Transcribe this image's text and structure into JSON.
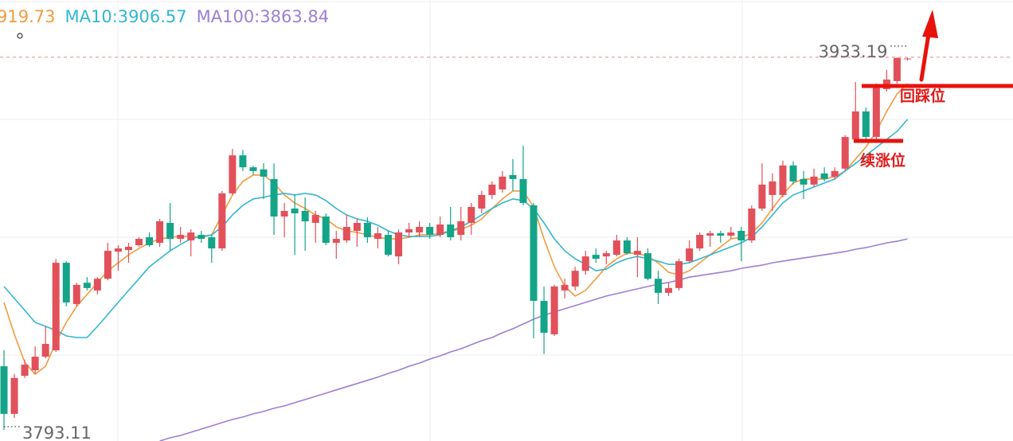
{
  "chart_data": {
    "type": "candlestick",
    "ylim": [
      3788.9,
      3954.7
    ],
    "grid": true,
    "up_color": "#e2505a",
    "down_color": "#14a487",
    "open": [
      3817.0,
      3799.1,
      3813.4,
      3815.5,
      3820.6,
      3823.0,
      3855.9,
      3840.4,
      3848.4,
      3845.5,
      3849.9,
      3860.1,
      3860.7,
      3862.5,
      3865.5,
      3863.4,
      3870.9,
      3864.9,
      3864.3,
      3866.4,
      3865.5,
      3861.3,
      3882.0,
      3896.3,
      3891.8,
      3891.0,
      3887.4,
      3873.3,
      3876.3,
      3875.4,
      3870.9,
      3873.3,
      3863.4,
      3864.3,
      3867.9,
      3870.9,
      3864.9,
      3866.4,
      3858.3,
      3867.3,
      3867.3,
      3869.4,
      3866.4,
      3870.3,
      3866.4,
      3870.9,
      3876.3,
      3881.4,
      3883.5,
      3888.9,
      3887.4,
      3877.5,
      3841.6,
      3829.0,
      3845.5,
      3847.0,
      3852.9,
      3858.9,
      3858.3,
      3858.9,
      3864.3,
      3858.9,
      3859.5,
      3849.9,
      3844.6,
      3846.4,
      3856.5,
      3861.3,
      3866.1,
      3867.0,
      3866.1,
      3867.9,
      3864.3,
      3876.3,
      3881.4,
      3881.4,
      3892.5,
      3887.4,
      3885.3,
      3889.5,
      3888.3,
      3891.3,
      3902.3,
      3912.8,
      3903.2,
      3921.2,
      3924.2,
      3932.4
    ],
    "high": [
      3823.0,
      3814.1,
      3819.5,
      3824.5,
      3832.0,
      3857.4,
      3856.5,
      3848.4,
      3850.5,
      3850.5,
      3863.4,
      3862.5,
      3863.4,
      3865.5,
      3867.3,
      3872.4,
      3878.4,
      3869.4,
      3868.5,
      3867.9,
      3866.4,
      3882.9,
      3898.7,
      3898.4,
      3892.4,
      3893.3,
      3893.3,
      3878.4,
      3881.4,
      3880.5,
      3875.4,
      3874.5,
      3867.9,
      3873.9,
      3872.4,
      3873.0,
      3869.4,
      3867.9,
      3868.5,
      3870.9,
      3871.5,
      3870.9,
      3873.3,
      3876.9,
      3876.9,
      3878.4,
      3882.9,
      3886.5,
      3890.4,
      3894.9,
      3899.9,
      3878.4,
      3847.0,
      3847.6,
      3849.9,
      3854.4,
      3860.4,
      3861.3,
      3860.4,
      3866.4,
      3865.5,
      3865.5,
      3861.3,
      3852.9,
      3848.4,
      3857.4,
      3864.3,
      3867.3,
      3867.9,
      3867.9,
      3869.4,
      3869.4,
      3877.5,
      3893.3,
      3889.5,
      3894.3,
      3894.0,
      3890.4,
      3891.3,
      3891.8,
      3891.8,
      3903.9,
      3923.9,
      3914.3,
      3923.3,
      3928.4,
      3933.19,
      3933.0
    ],
    "low": [
      3793.11,
      3797.6,
      3812.6,
      3814.1,
      3820.0,
      3822.4,
      3839.5,
      3839.5,
      3845.5,
      3844.0,
      3849.3,
      3852.9,
      3855.9,
      3861.9,
      3861.9,
      3861.9,
      3860.4,
      3863.4,
      3858.3,
      3863.4,
      3855.9,
      3860.4,
      3881.4,
      3890.4,
      3888.9,
      3879.9,
      3866.4,
      3865.5,
      3858.9,
      3860.4,
      3863.4,
      3862.5,
      3857.4,
      3863.4,
      3861.9,
      3863.4,
      3861.3,
      3858.3,
      3855.3,
      3865.5,
      3865.5,
      3864.9,
      3865.5,
      3864.3,
      3864.3,
      3866.4,
      3874.5,
      3879.9,
      3882.3,
      3882.9,
      3877.5,
      3827.5,
      3821.6,
      3828.4,
      3842.5,
      3845.5,
      3851.4,
      3855.9,
      3855.3,
      3858.3,
      3858.9,
      3850.5,
      3849.3,
      3840.4,
      3843.4,
      3845.5,
      3855.9,
      3860.4,
      3861.9,
      3863.4,
      3864.9,
      3856.5,
      3863.4,
      3875.4,
      3875.4,
      3880.5,
      3885.3,
      3879.9,
      3884.4,
      3886.5,
      3887.4,
      3890.4,
      3901.4,
      3901.4,
      3902.3,
      3920.3,
      3923.3,
      3932.0
    ],
    "close": [
      3799.1,
      3812.6,
      3817.6,
      3820.6,
      3825.4,
      3855.9,
      3841.0,
      3847.6,
      3846.4,
      3849.9,
      3860.4,
      3861.3,
      3861.9,
      3864.9,
      3862.5,
      3871.5,
      3864.9,
      3866.4,
      3867.3,
      3864.9,
      3861.3,
      3882.0,
      3896.3,
      3891.8,
      3890.4,
      3888.3,
      3873.3,
      3875.4,
      3874.5,
      3871.5,
      3873.9,
      3863.4,
      3864.9,
      3869.4,
      3870.9,
      3865.5,
      3867.0,
      3858.9,
      3867.3,
      3868.5,
      3869.4,
      3866.4,
      3870.3,
      3865.5,
      3871.5,
      3876.9,
      3881.4,
      3885.3,
      3888.3,
      3887.4,
      3878.4,
      3841.6,
      3829.6,
      3847.0,
      3847.6,
      3852.9,
      3858.3,
      3857.4,
      3859.5,
      3864.3,
      3859.5,
      3860.4,
      3849.9,
      3844.6,
      3846.4,
      3856.5,
      3861.3,
      3866.4,
      3867.0,
      3866.1,
      3867.3,
      3864.3,
      3876.3,
      3885.3,
      3886.5,
      3892.5,
      3886.5,
      3885.3,
      3888.3,
      3887.4,
      3890.4,
      3903.2,
      3912.8,
      3903.2,
      3921.8,
      3924.8,
      3932.9,
      3932.7
    ],
    "high_label": "3933.19",
    "low_label": "3793.11",
    "series": [
      {
        "name": "919.73",
        "color": "#f39a3c",
        "values": [
          3841.0,
          3829.0,
          3818.5,
          3814.0,
          3817.0,
          3826.0,
          3833.5,
          3839.5,
          3844.0,
          3848.5,
          3852.9,
          3855.9,
          3858.9,
          3861.3,
          3863.4,
          3864.9,
          3865.5,
          3865.8,
          3865.8,
          3865.5,
          3866.4,
          3873.9,
          3881.4,
          3886.5,
          3888.9,
          3888.9,
          3885.9,
          3881.4,
          3878.4,
          3876.3,
          3873.9,
          3872.4,
          3869.4,
          3867.9,
          3867.3,
          3866.4,
          3865.5,
          3864.9,
          3864.9,
          3865.5,
          3866.4,
          3866.4,
          3867.0,
          3867.9,
          3868.5,
          3870.0,
          3872.4,
          3876.3,
          3879.9,
          3882.9,
          3882.9,
          3876.9,
          3864.9,
          3854.4,
          3847.0,
          3843.4,
          3845.5,
          3849.9,
          3854.4,
          3857.4,
          3859.5,
          3859.5,
          3858.3,
          3855.9,
          3852.3,
          3851.4,
          3852.9,
          3855.9,
          3858.9,
          3861.9,
          3864.9,
          3865.5,
          3867.0,
          3870.9,
          3876.3,
          3881.4,
          3885.9,
          3887.4,
          3887.4,
          3887.4,
          3888.3,
          3890.4,
          3894.9,
          3899.4,
          3905.3,
          3912.8,
          3919.4,
          3923.3
        ]
      },
      {
        "name": "MA10:3906.57",
        "color": "#2fb7d2",
        "values": [
          3847.0,
          3842.5,
          3838.0,
          3833.5,
          3832.0,
          3830.5,
          3828.4,
          3827.8,
          3827.8,
          3832.0,
          3836.5,
          3841.0,
          3845.5,
          3849.9,
          3854.4,
          3857.4,
          3860.4,
          3862.8,
          3864.9,
          3865.8,
          3866.4,
          3869.4,
          3873.9,
          3877.5,
          3879.9,
          3880.5,
          3881.4,
          3882.0,
          3881.4,
          3882.0,
          3881.4,
          3879.3,
          3876.3,
          3873.9,
          3872.4,
          3871.5,
          3870.0,
          3867.9,
          3866.4,
          3865.8,
          3865.8,
          3865.8,
          3866.4,
          3867.9,
          3869.4,
          3871.5,
          3873.9,
          3876.3,
          3878.4,
          3879.9,
          3879.3,
          3876.3,
          3870.9,
          3864.9,
          3860.4,
          3857.4,
          3855.3,
          3852.9,
          3853.5,
          3855.9,
          3857.4,
          3858.3,
          3857.4,
          3856.5,
          3855.3,
          3855.3,
          3855.9,
          3857.4,
          3858.9,
          3860.4,
          3861.9,
          3863.4,
          3865.5,
          3869.4,
          3873.9,
          3878.4,
          3881.4,
          3882.9,
          3884.4,
          3885.9,
          3887.4,
          3890.4,
          3893.3,
          3896.3,
          3899.3,
          3902.3,
          3905.3,
          3909.8
        ]
      },
      {
        "name": "MA100:3863.84",
        "color": "#9b7fd6",
        "values": [
          null,
          null,
          null,
          null,
          null,
          null,
          null,
          null,
          null,
          null,
          null,
          null,
          null,
          null,
          null,
          3788.9,
          3790.1,
          3791.0,
          3792.2,
          3793.4,
          3794.6,
          3795.8,
          3797.0,
          3797.9,
          3799.1,
          3800.0,
          3801.2,
          3802.1,
          3803.3,
          3804.5,
          3805.7,
          3806.9,
          3808.1,
          3809.3,
          3810.5,
          3811.7,
          3812.9,
          3814.3,
          3815.5,
          3817.0,
          3818.2,
          3819.7,
          3820.9,
          3822.4,
          3823.6,
          3825.1,
          3826.6,
          3827.8,
          3829.6,
          3831.1,
          3832.9,
          3834.7,
          3836.2,
          3837.4,
          3838.6,
          3839.8,
          3841.0,
          3842.2,
          3843.4,
          3844.3,
          3845.2,
          3846.1,
          3847.0,
          3847.9,
          3848.5,
          3849.4,
          3850.5,
          3851.1,
          3851.7,
          3852.3,
          3852.9,
          3853.8,
          3854.4,
          3855.0,
          3855.9,
          3856.5,
          3857.1,
          3857.7,
          3858.3,
          3858.9,
          3859.5,
          3860.1,
          3861.0,
          3861.6,
          3862.5,
          3863.4,
          3864.0,
          3864.9
        ]
      }
    ],
    "annotations": [
      "回踩位",
      "续涨位"
    ]
  }
}
